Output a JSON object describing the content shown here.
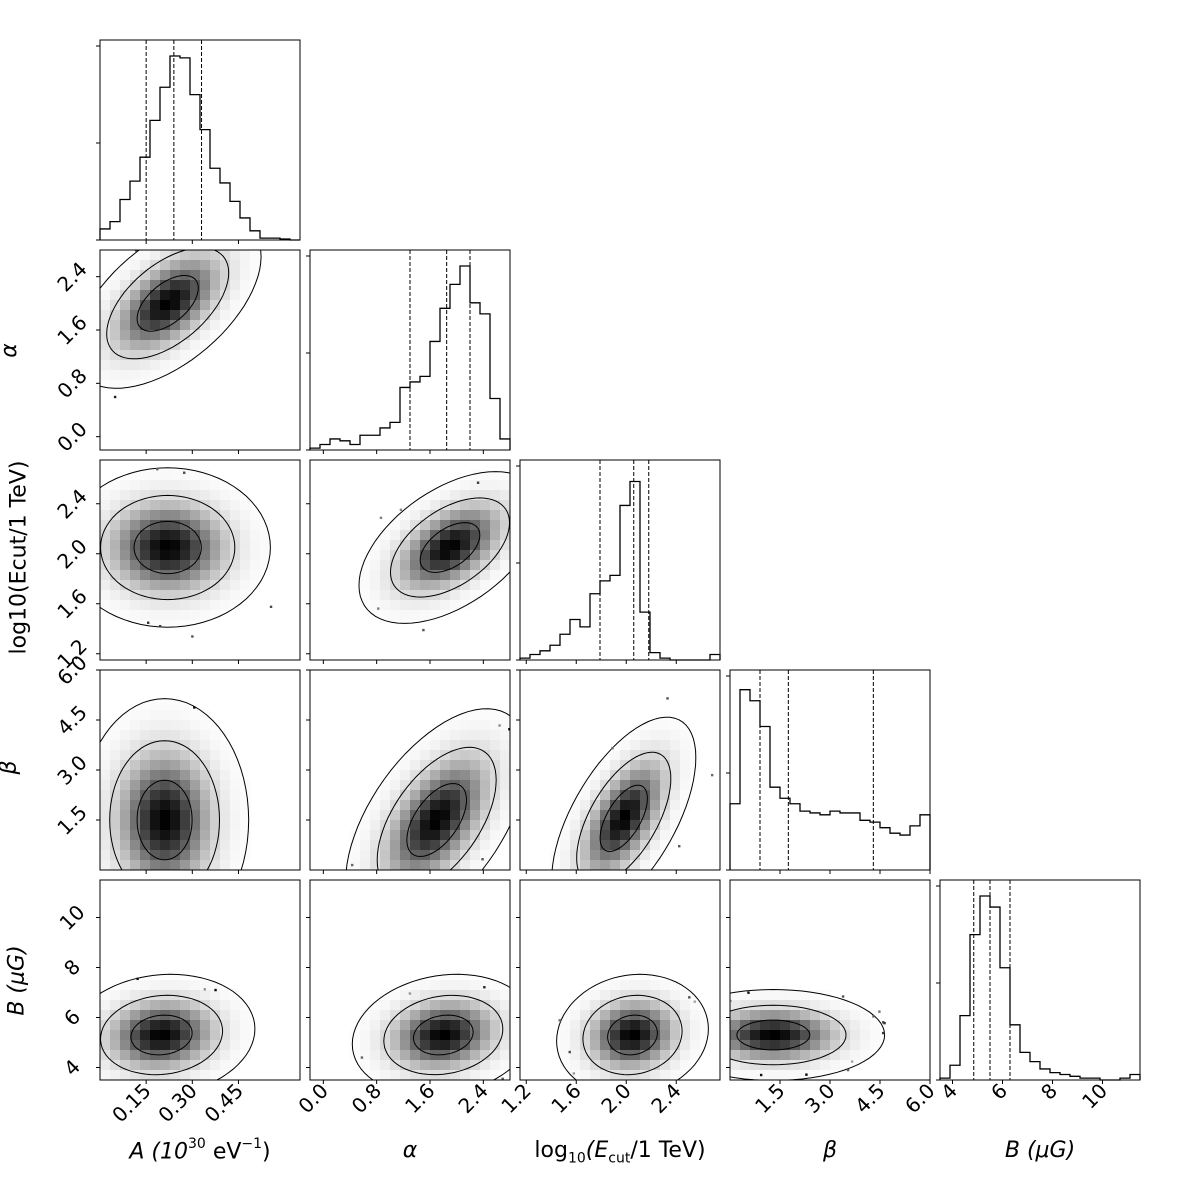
{
  "chart_data": {
    "type": "corner",
    "parameters": [
      {
        "name": "A",
        "unit_label": "A (10^30 eV^-1)",
        "range": [
          0.0,
          0.65
        ],
        "ticks": [
          0.15,
          0.3,
          0.45
        ],
        "tick_labels": [
          "0.15",
          "0.30",
          "0.45"
        ],
        "quantiles": [
          0.15,
          0.24,
          0.33
        ]
      },
      {
        "name": "alpha",
        "unit_label": "α",
        "range": [
          -0.2,
          2.8
        ],
        "ticks": [
          0.0,
          0.8,
          1.6,
          2.4
        ],
        "tick_labels": [
          "0.0",
          "0.8",
          "1.6",
          "2.4"
        ],
        "quantiles": [
          1.3,
          1.85,
          2.2
        ]
      },
      {
        "name": "log10_Ecut",
        "unit_label": "log10(Ecut/1 TeV)",
        "range": [
          1.15,
          2.75
        ],
        "ticks": [
          1.2,
          1.6,
          2.0,
          2.4
        ],
        "tick_labels": [
          "1.2",
          "1.6",
          "2.0",
          "2.4"
        ],
        "quantiles": [
          1.79,
          2.06,
          2.18
        ]
      },
      {
        "name": "beta",
        "unit_label": "β",
        "range": [
          0.0,
          6.0
        ],
        "ticks": [
          1.5,
          3.0,
          4.5,
          6.0
        ],
        "tick_labels": [
          "1.5",
          "3.0",
          "4.5",
          "6.0"
        ],
        "quantiles": [
          0.9,
          1.75,
          4.3
        ]
      },
      {
        "name": "B",
        "unit_label": "B (μG)",
        "range": [
          3.5,
          11.5
        ],
        "ticks": [
          4,
          6,
          8,
          10
        ],
        "tick_labels": [
          "4",
          "6",
          "8",
          "10"
        ],
        "quantiles": [
          4.85,
          5.5,
          6.3
        ]
      }
    ],
    "histograms": [
      [
        0.06,
        0.1,
        0.22,
        0.32,
        0.45,
        0.65,
        0.83,
        1.0,
        0.99,
        0.79,
        0.6,
        0.39,
        0.31,
        0.21,
        0.12,
        0.05,
        0.01,
        0.01,
        0.005,
        0.0
      ],
      [
        0.01,
        0.03,
        0.06,
        0.05,
        0.03,
        0.08,
        0.08,
        0.12,
        0.15,
        0.34,
        0.37,
        0.4,
        0.59,
        0.77,
        0.9,
        1.0,
        0.8,
        0.74,
        0.28,
        0.06
      ],
      [
        0.01,
        0.03,
        0.05,
        0.08,
        0.14,
        0.22,
        0.18,
        0.36,
        0.43,
        0.46,
        0.84,
        0.97,
        0.26,
        0.04,
        0.01,
        0.0,
        0.0,
        0.0,
        0.0,
        0.03
      ],
      [
        0.36,
        0.98,
        0.92,
        0.78,
        0.45,
        0.39,
        0.36,
        0.32,
        0.31,
        0.3,
        0.32,
        0.31,
        0.31,
        0.27,
        0.26,
        0.23,
        0.2,
        0.19,
        0.24,
        0.3
      ],
      [
        0.01,
        0.08,
        0.35,
        0.79,
        1.0,
        0.94,
        0.61,
        0.3,
        0.15,
        0.1,
        0.06,
        0.04,
        0.03,
        0.02,
        0.01,
        0.01,
        0.0,
        0.0,
        0.01,
        0.03
      ]
    ],
    "pair_stats": {
      "1_0": {
        "mean": [
          0.22,
          2.0
        ],
        "sd": [
          0.1,
          0.42
        ],
        "rho": 0.55
      },
      "2_0": {
        "mean": [
          0.22,
          2.05
        ],
        "sd": [
          0.11,
          0.21
        ],
        "rho": 0.0
      },
      "2_1": {
        "mean": [
          1.9,
          2.05
        ],
        "sd": [
          0.45,
          0.2
        ],
        "rho": 0.5
      },
      "3_0": {
        "mean": [
          0.21,
          1.5
        ],
        "sd": [
          0.09,
          1.2
        ],
        "rho": 0.0
      },
      "3_1": {
        "mean": [
          1.7,
          1.5
        ],
        "sd": [
          0.45,
          1.1
        ],
        "rho": 0.55
      },
      "3_2": {
        "mean": [
          1.98,
          1.55
        ],
        "sd": [
          0.19,
          1.0
        ],
        "rho": 0.6
      },
      "4_0": {
        "mean": [
          0.2,
          5.3
        ],
        "sd": [
          0.1,
          0.8
        ],
        "rho": 0.1
      },
      "4_1": {
        "mean": [
          1.8,
          5.3
        ],
        "sd": [
          0.45,
          0.8
        ],
        "rho": 0.15
      },
      "4_2": {
        "mean": [
          2.05,
          5.3
        ],
        "sd": [
          0.2,
          0.8
        ],
        "rho": 0.1
      },
      "4_3": {
        "mean": [
          1.3,
          5.3
        ],
        "sd": [
          1.1,
          0.6
        ],
        "rho": 0.0
      }
    },
    "contour_levels": [
      0.39,
      0.86,
      0.99
    ]
  },
  "labels": {
    "x_A_base": "A (10",
    "x_A_exp": "30",
    "x_A_tail": " eV",
    "x_A_exp2": "−1",
    "x_A_close": ")",
    "x_alpha": "α",
    "x_log_pre": "log",
    "x_log_sub": "10",
    "x_log_mid": "(E",
    "x_log_sub2": "cut",
    "x_log_tail": "/1 TeV)",
    "x_beta": "β",
    "x_B": "B (μG)",
    "y_alpha": "α",
    "y_log": "log10(Ecut/1 TeV)",
    "y_beta": "β",
    "y_B": "B (μG)"
  }
}
